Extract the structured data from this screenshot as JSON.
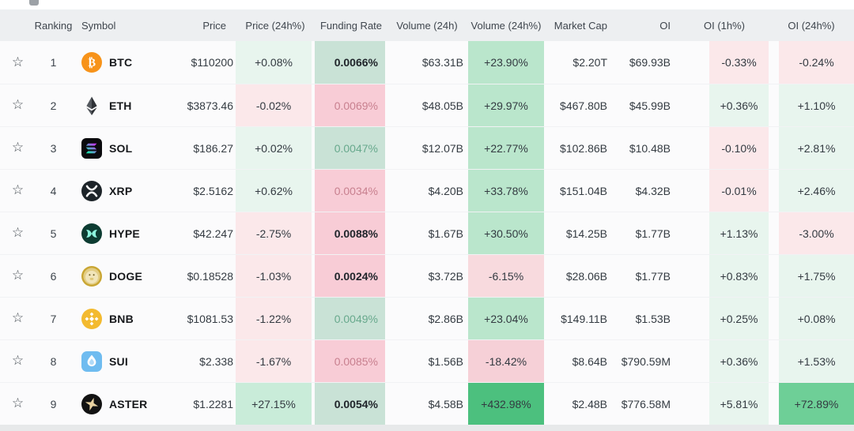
{
  "table": {
    "columns": [
      {
        "key": "star",
        "label": ""
      },
      {
        "key": "ranking",
        "label": "Ranking"
      },
      {
        "key": "symbol",
        "label": "Symbol"
      },
      {
        "key": "price",
        "label": "Price"
      },
      {
        "key": "price_24h",
        "label": "Price (24h%)"
      },
      {
        "key": "funding_rate",
        "label": "Funding Rate"
      },
      {
        "key": "volume_24h",
        "label": "Volume (24h)"
      },
      {
        "key": "volume_24h_pct",
        "label": "Volume (24h%)"
      },
      {
        "key": "market_cap",
        "label": "Market Cap"
      },
      {
        "key": "oi",
        "label": "OI"
      },
      {
        "key": "oi_1h",
        "label": "OI (1h%)"
      },
      {
        "key": "oi_24h",
        "label": "OI (24h%)"
      }
    ],
    "star_icon": "☆",
    "rows": [
      {
        "rank": "1",
        "symbol": "BTC",
        "icon": "btc-icon",
        "price": "$110200",
        "price_24h": {
          "v": "+0.08%",
          "s": "g"
        },
        "funding_rate": {
          "v": "0.0066%",
          "s": "fgd"
        },
        "volume_24h": "$63.31B",
        "volume_24h_pct": {
          "v": "+23.90%",
          "s": "g3"
        },
        "market_cap": "$2.20T",
        "oi": "$69.93B",
        "oi_1h": {
          "v": "-0.33%",
          "s": "p"
        },
        "oi_24h": {
          "v": "-0.24%",
          "s": "p"
        }
      },
      {
        "rank": "2",
        "symbol": "ETH",
        "icon": "eth-icon",
        "price": "$3873.46",
        "price_24h": {
          "v": "-0.02%",
          "s": "p"
        },
        "funding_rate": {
          "v": "0.0069%",
          "s": "fp"
        },
        "volume_24h": "$48.05B",
        "volume_24h_pct": {
          "v": "+29.97%",
          "s": "g3"
        },
        "market_cap": "$467.80B",
        "oi": "$45.99B",
        "oi_1h": {
          "v": "+0.36%",
          "s": "g"
        },
        "oi_24h": {
          "v": "+1.10%",
          "s": "g"
        }
      },
      {
        "rank": "3",
        "symbol": "SOL",
        "icon": "sol-icon",
        "price": "$186.27",
        "price_24h": {
          "v": "+0.02%",
          "s": "g"
        },
        "funding_rate": {
          "v": "0.0047%",
          "s": "fg"
        },
        "volume_24h": "$12.07B",
        "volume_24h_pct": {
          "v": "+22.77%",
          "s": "g3"
        },
        "market_cap": "$102.86B",
        "oi": "$10.48B",
        "oi_1h": {
          "v": "-0.10%",
          "s": "p"
        },
        "oi_24h": {
          "v": "+2.81%",
          "s": "g"
        }
      },
      {
        "rank": "4",
        "symbol": "XRP",
        "icon": "xrp-icon",
        "price": "$2.5162",
        "price_24h": {
          "v": "+0.62%",
          "s": "g"
        },
        "funding_rate": {
          "v": "0.0034%",
          "s": "fp"
        },
        "volume_24h": "$4.20B",
        "volume_24h_pct": {
          "v": "+33.78%",
          "s": "g3"
        },
        "market_cap": "$151.04B",
        "oi": "$4.32B",
        "oi_1h": {
          "v": "-0.01%",
          "s": "p"
        },
        "oi_24h": {
          "v": "+2.46%",
          "s": "g"
        }
      },
      {
        "rank": "5",
        "symbol": "HYPE",
        "icon": "hype-icon",
        "price": "$42.247",
        "price_24h": {
          "v": "-2.75%",
          "s": "p"
        },
        "funding_rate": {
          "v": "0.0088%",
          "s": "fpd"
        },
        "volume_24h": "$1.67B",
        "volume_24h_pct": {
          "v": "+30.50%",
          "s": "g3"
        },
        "market_cap": "$14.25B",
        "oi": "$1.77B",
        "oi_1h": {
          "v": "+1.13%",
          "s": "g"
        },
        "oi_24h": {
          "v": "-3.00%",
          "s": "p"
        }
      },
      {
        "rank": "6",
        "symbol": "DOGE",
        "icon": "doge-icon",
        "price": "$0.18528",
        "price_24h": {
          "v": "-1.03%",
          "s": "p"
        },
        "funding_rate": {
          "v": "0.0024%",
          "s": "fpd"
        },
        "volume_24h": "$3.72B",
        "volume_24h_pct": {
          "v": "-6.15%",
          "s": "p2"
        },
        "market_cap": "$28.06B",
        "oi": "$1.77B",
        "oi_1h": {
          "v": "+0.83%",
          "s": "g"
        },
        "oi_24h": {
          "v": "+1.75%",
          "s": "g"
        }
      },
      {
        "rank": "7",
        "symbol": "BNB",
        "icon": "bnb-icon",
        "price": "$1081.53",
        "price_24h": {
          "v": "-1.22%",
          "s": "p"
        },
        "funding_rate": {
          "v": "0.0049%",
          "s": "fg"
        },
        "volume_24h": "$2.86B",
        "volume_24h_pct": {
          "v": "+23.04%",
          "s": "g3"
        },
        "market_cap": "$149.11B",
        "oi": "$1.53B",
        "oi_1h": {
          "v": "+0.25%",
          "s": "g"
        },
        "oi_24h": {
          "v": "+0.08%",
          "s": "g"
        }
      },
      {
        "rank": "8",
        "symbol": "SUI",
        "icon": "sui-icon",
        "price": "$2.338",
        "price_24h": {
          "v": "-1.67%",
          "s": "p"
        },
        "funding_rate": {
          "v": "0.0085%",
          "s": "fp"
        },
        "volume_24h": "$1.56B",
        "volume_24h_pct": {
          "v": "-18.42%",
          "s": "p3"
        },
        "market_cap": "$8.64B",
        "oi": "$790.59M",
        "oi_1h": {
          "v": "+0.36%",
          "s": "g"
        },
        "oi_24h": {
          "v": "+1.53%",
          "s": "g"
        }
      },
      {
        "rank": "9",
        "symbol": "ASTER",
        "icon": "aster-icon",
        "price": "$1.2281",
        "price_24h": {
          "v": "+27.15%",
          "s": "g2"
        },
        "funding_rate": {
          "v": "0.0054%",
          "s": "fgd"
        },
        "volume_24h": "$4.58B",
        "volume_24h_pct": {
          "v": "+432.98%",
          "s": "g5"
        },
        "market_cap": "$2.48B",
        "oi": "$776.58M",
        "oi_1h": {
          "v": "+5.81%",
          "s": "g"
        },
        "oi_24h": {
          "v": "+72.89%",
          "s": "g4"
        }
      }
    ]
  },
  "colors": {
    "row_bg": "#fbfbfc",
    "header_bg": "#edeff1",
    "page_bg": "#e7e9ea",
    "green_light": "#e8f5ee",
    "green_medium": "#bae6cc",
    "green_strong": "#4cc07e",
    "green_oi_strong": "#6ecf97",
    "pink_light": "#fbe8ea",
    "pink_medium": "#f6d0d7",
    "funding_green_bg": "#c9e2d6",
    "funding_green_text": "#68a98d",
    "funding_pink_bg": "#f8ccd6",
    "funding_pink_text": "#c8808f",
    "btc_brand": "#f7931a",
    "bnb_brand": "#f3ba2f",
    "sui_brand": "#6fbcf0"
  }
}
